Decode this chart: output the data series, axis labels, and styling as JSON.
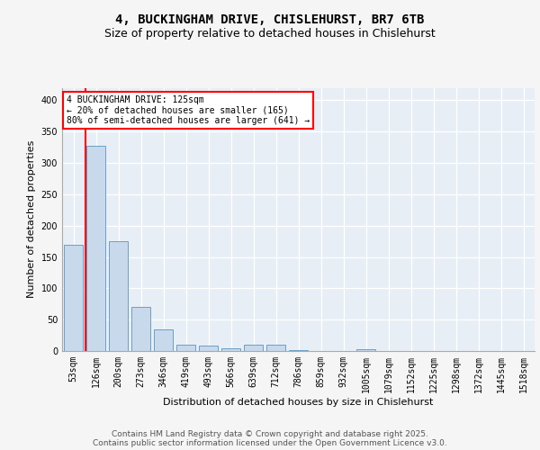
{
  "title1": "4, BUCKINGHAM DRIVE, CHISLEHURST, BR7 6TB",
  "title2": "Size of property relative to detached houses in Chislehurst",
  "xlabel": "Distribution of detached houses by size in Chislehurst",
  "ylabel": "Number of detached properties",
  "categories": [
    "53sqm",
    "126sqm",
    "200sqm",
    "273sqm",
    "346sqm",
    "419sqm",
    "493sqm",
    "566sqm",
    "639sqm",
    "712sqm",
    "786sqm",
    "859sqm",
    "932sqm",
    "1005sqm",
    "1079sqm",
    "1152sqm",
    "1225sqm",
    "1298sqm",
    "1372sqm",
    "1445sqm",
    "1518sqm"
  ],
  "values": [
    170,
    328,
    175,
    70,
    35,
    10,
    9,
    5,
    10,
    10,
    1,
    0,
    0,
    3,
    0,
    0,
    0,
    0,
    0,
    0,
    0
  ],
  "bar_color": "#c8d9ec",
  "bar_edge_color": "#6a9fc8",
  "vline_color": "red",
  "annotation_text": "4 BUCKINGHAM DRIVE: 125sqm\n← 20% of detached houses are smaller (165)\n80% of semi-detached houses are larger (641) →",
  "annotation_box_color": "white",
  "annotation_box_edge_color": "red",
  "ylim": [
    0,
    420
  ],
  "yticks": [
    0,
    50,
    100,
    150,
    200,
    250,
    300,
    350,
    400
  ],
  "background_color": "#e8eef5",
  "fig_background": "#f5f5f5",
  "footer_text": "Contains HM Land Registry data © Crown copyright and database right 2025.\nContains public sector information licensed under the Open Government Licence v3.0.",
  "title_fontsize": 10,
  "subtitle_fontsize": 9,
  "axis_label_fontsize": 8,
  "tick_fontsize": 7,
  "footer_fontsize": 6.5
}
